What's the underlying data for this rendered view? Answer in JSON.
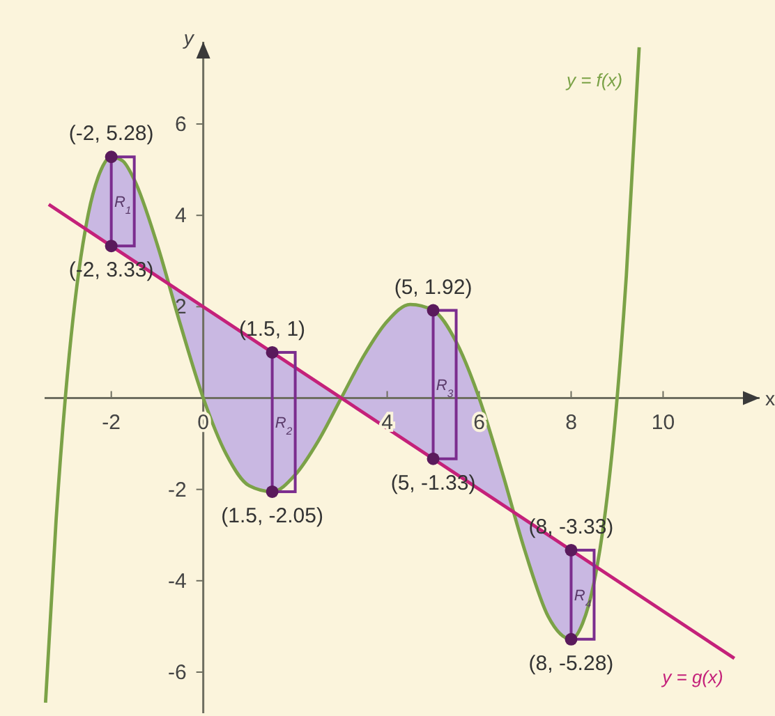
{
  "chart_data": {
    "type": "line",
    "xlabel": "x",
    "ylabel": "y",
    "xlim": [
      -3.45,
      12.1
    ],
    "ylim": [
      -6.9,
      7.8
    ],
    "xticks": [
      -2,
      0,
      4,
      6,
      8,
      10
    ],
    "yticks": [
      -6,
      -4,
      -2,
      2,
      4,
      6
    ],
    "grid": false,
    "series": [
      {
        "name": "y = f(x)",
        "color": "#7ba247",
        "x": [
          -3.43,
          -3.2,
          -3,
          -2.75,
          -2.56,
          -2.5,
          -2.25,
          -2,
          -1.75,
          -1.5,
          -1,
          -0.5,
          0,
          0.5,
          1,
          1.5,
          2,
          2.5,
          3,
          3.5,
          4,
          4.5,
          5,
          5.5,
          6,
          6.5,
          7,
          7.5,
          8,
          8.25,
          8.5,
          8.56,
          8.75,
          9,
          9.2,
          9.48
        ],
        "values": [
          -6.67,
          -2.67,
          0,
          2.44,
          3.71,
          4.03,
          4.93,
          5.28,
          5.19,
          4.78,
          3.36,
          1.62,
          0,
          -1.23,
          -1.92,
          -2.05,
          -1.68,
          -0.94,
          0,
          0.94,
          1.68,
          2.05,
          1.92,
          1.23,
          0,
          -1.62,
          -3.36,
          -4.78,
          -5.28,
          -4.93,
          -4.03,
          -3.71,
          -2.44,
          0,
          2.67,
          7.68
        ],
        "upper": [
          null,
          null,
          null,
          null,
          3.71,
          4.03,
          4.93,
          5.28,
          5.19,
          4.78,
          3.36,
          1.62,
          0,
          -1.23,
          -1.92,
          -2.05,
          -1.68,
          -0.94,
          0,
          0.94,
          1.68,
          2.05,
          1.92,
          1.23,
          0,
          -1.62,
          -3.36,
          -4.78,
          -5.28,
          -4.93,
          -4.03,
          -3.71,
          null,
          null,
          null,
          null
        ],
        "lower": [
          null,
          null,
          null,
          null,
          3.71,
          3.67,
          3.5,
          3.33,
          3.17,
          3,
          2.67,
          2.33,
          2,
          1.67,
          1.33,
          1,
          0.67,
          0.33,
          0,
          -0.33,
          -0.67,
          -1,
          -1.33,
          -1.67,
          -2,
          -2.33,
          -2.67,
          -3,
          -3.33,
          -3.5,
          -3.67,
          -3.71,
          null,
          null,
          null,
          null
        ]
      },
      {
        "name": "y = g(x)",
        "color": "#c4217a",
        "x": [
          -3.36,
          -2,
          1.5,
          5,
          8,
          11.55
        ],
        "values": [
          4.24,
          3.33,
          1,
          -1.33,
          -3.33,
          -5.7
        ]
      },
      {
        "type": "bar",
        "color": "#7b2d8e",
        "x": [
          -1.75,
          1.75,
          5.25,
          8.25
        ],
        "base": [
          3.33,
          -2.05,
          -1.33,
          -5.28
        ],
        "values": [
          1.95,
          3.05,
          3.25,
          1.95
        ]
      },
      {
        "type": "scatter",
        "color": "#5a1a5c",
        "marker": "circle",
        "x": [
          -2,
          -2,
          1.5,
          1.5,
          5,
          5,
          8,
          8
        ],
        "values": [
          5.28,
          3.33,
          1,
          -2.05,
          1.92,
          -1.33,
          -3.33,
          -5.28
        ]
      }
    ],
    "annotations": [
      {
        "text": "(-2, 5.28)",
        "x": -2,
        "y": 5.28
      },
      {
        "text": "(-2, 3.33)",
        "x": -2,
        "y": 3.33
      },
      {
        "text": "(1.5, 1)",
        "x": 1.5,
        "y": 1
      },
      {
        "text": "(1.5, -2.05)",
        "x": 1.5,
        "y": -2.05
      },
      {
        "text": "(5, 1.92)",
        "x": 5,
        "y": 1.92
      },
      {
        "text": "(5, -1.33)",
        "x": 5,
        "y": -1.33
      },
      {
        "text": "(8, -3.33)",
        "x": 8,
        "y": -3.33
      },
      {
        "text": "(8, -5.28)",
        "x": 8,
        "y": -5.28
      },
      "R$_{1}$",
      "R$_{2}$",
      "R$_{3}$",
      "R$_{4}$"
    ]
  }
}
